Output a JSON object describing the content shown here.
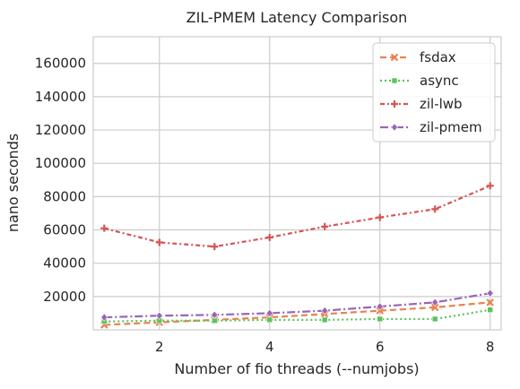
{
  "chart_data": {
    "type": "line",
    "title": "ZIL-PMEM Latency Comparison",
    "xlabel": "Number of fio threads (--numjobs)",
    "ylabel": "nano seconds",
    "x": [
      1,
      2,
      3,
      4,
      5,
      6,
      7,
      8
    ],
    "xlim": [
      0.8,
      8.2
    ],
    "ylim": [
      0,
      176000
    ],
    "xticks": [
      2,
      4,
      6,
      8
    ],
    "yticks": [
      20000,
      40000,
      60000,
      80000,
      100000,
      120000,
      140000,
      160000
    ],
    "grid": true,
    "legend_position": "top-right",
    "series": [
      {
        "name": "fsdax",
        "color": "#e8834e",
        "dash": "7,4",
        "marker": "x",
        "values": [
          3000,
          4500,
          6000,
          7500,
          9500,
          11500,
          13500,
          16500
        ]
      },
      {
        "name": "async",
        "color": "#5bc35b",
        "dash": "2,3",
        "marker": "square",
        "values": [
          5000,
          5500,
          5500,
          6000,
          6000,
          6500,
          6500,
          12000
        ]
      },
      {
        "name": "zil-lwb",
        "color": "#d65454",
        "dash": "5,3,2,3",
        "marker": "plus",
        "values": [
          61000,
          52500,
          50000,
          55500,
          62000,
          67500,
          72500,
          86500
        ]
      },
      {
        "name": "zil-pmem",
        "color": "#9865b8",
        "dash": "9,3,2,3",
        "marker": "diamond",
        "values": [
          7500,
          8500,
          9000,
          10000,
          11500,
          14000,
          16500,
          22000
        ]
      }
    ]
  }
}
